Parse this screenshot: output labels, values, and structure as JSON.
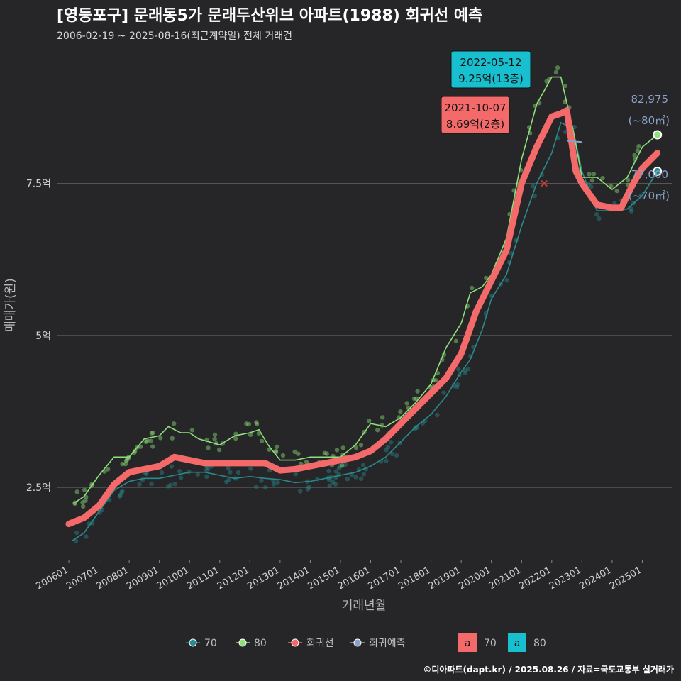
{
  "header": {
    "title": "[영등포구] 문래동5가 문래두산위브 아파트(1988) 회귀선 예측",
    "subtitle": "2006-02-19 ~ 2025-08-16(최근계약일) 전체 거래건"
  },
  "footer": {
    "credit": "©디아파트(dapt.kr) / 2025.08.26 / 자료=국토교통부 실거래가"
  },
  "colors": {
    "background": "#262628",
    "grid": "#555555",
    "s70": "#2a8a8c",
    "s80": "#8ee07a",
    "trend": "#f46a6a",
    "forecast": "#8aa2c8",
    "label70": "#f46a6a",
    "label80": "#17bfcf"
  },
  "chart_data": {
    "type": "line",
    "xlabel": "거래년월",
    "ylabel": "매매가(원)",
    "x_ticks": [
      "200601",
      "200701",
      "200801",
      "200901",
      "201001",
      "201101",
      "201201",
      "201301",
      "201401",
      "201501",
      "201601",
      "201701",
      "201801",
      "201901",
      "202001",
      "202101",
      "202201",
      "202301",
      "202401",
      "202501"
    ],
    "y_ticks": [
      {
        "value": 25000,
        "label": "2.5억"
      },
      {
        "value": 50000,
        "label": "5억"
      },
      {
        "value": 75000,
        "label": "7.5억"
      }
    ],
    "ylim": [
      13000,
      97000
    ],
    "xlim": [
      2005.6,
      2026.0
    ],
    "series": [
      {
        "name": "70",
        "points": [
          [
            2006.1,
            16200
          ],
          [
            2006.5,
            17500
          ],
          [
            2007.0,
            21000
          ],
          [
            2007.5,
            24500
          ],
          [
            2008.0,
            26000
          ],
          [
            2008.5,
            26500
          ],
          [
            2009.0,
            26500
          ],
          [
            2009.5,
            27000
          ],
          [
            2010.0,
            27500
          ],
          [
            2010.5,
            27500
          ],
          [
            2011.0,
            27000
          ],
          [
            2011.5,
            26500
          ],
          [
            2012.0,
            26800
          ],
          [
            2012.5,
            26500
          ],
          [
            2013.0,
            26300
          ],
          [
            2013.5,
            25800
          ],
          [
            2014.0,
            26000
          ],
          [
            2014.5,
            26500
          ],
          [
            2015.0,
            27000
          ],
          [
            2015.5,
            27500
          ],
          [
            2016.0,
            28500
          ],
          [
            2016.5,
            30000
          ],
          [
            2017.0,
            32500
          ],
          [
            2017.5,
            35000
          ],
          [
            2018.0,
            37000
          ],
          [
            2018.5,
            40000
          ],
          [
            2019.0,
            44000
          ],
          [
            2019.3,
            46000
          ],
          [
            2019.7,
            51000
          ],
          [
            2020.0,
            56000
          ],
          [
            2020.5,
            60000
          ],
          [
            2021.0,
            68000
          ],
          [
            2021.5,
            75000
          ],
          [
            2022.0,
            80000
          ],
          [
            2022.3,
            85000
          ],
          [
            2022.7,
            84000
          ],
          [
            2023.0,
            77000
          ],
          [
            2023.5,
            70500
          ],
          [
            2024.0,
            70500
          ],
          [
            2024.5,
            70800
          ],
          [
            2025.0,
            73000
          ],
          [
            2025.5,
            77000
          ]
        ]
      },
      {
        "name": "80",
        "points": [
          [
            2006.2,
            22500
          ],
          [
            2006.5,
            23500
          ],
          [
            2007.0,
            27000
          ],
          [
            2007.5,
            30000
          ],
          [
            2008.0,
            30000
          ],
          [
            2008.5,
            33000
          ],
          [
            2009.0,
            33500
          ],
          [
            2009.3,
            35000
          ],
          [
            2009.7,
            34000
          ],
          [
            2010.0,
            34000
          ],
          [
            2010.3,
            33000
          ],
          [
            2011.0,
            32000
          ],
          [
            2011.5,
            33500
          ],
          [
            2012.0,
            34000
          ],
          [
            2012.3,
            34500
          ],
          [
            2012.6,
            32000
          ],
          [
            2013.0,
            29500
          ],
          [
            2013.5,
            29500
          ],
          [
            2014.0,
            30000
          ],
          [
            2014.5,
            30000
          ],
          [
            2015.0,
            30000
          ],
          [
            2015.5,
            32000
          ],
          [
            2016.0,
            35500
          ],
          [
            2016.5,
            35000
          ],
          [
            2017.0,
            36500
          ],
          [
            2017.5,
            39000
          ],
          [
            2018.0,
            42000
          ],
          [
            2018.5,
            48000
          ],
          [
            2019.0,
            52000
          ],
          [
            2019.3,
            57000
          ],
          [
            2019.7,
            58000
          ],
          [
            2020.0,
            60000
          ],
          [
            2020.5,
            66000
          ],
          [
            2021.0,
            79000
          ],
          [
            2021.5,
            88000
          ],
          [
            2022.0,
            92500
          ],
          [
            2022.3,
            92500
          ],
          [
            2022.7,
            84000
          ],
          [
            2023.0,
            76000
          ],
          [
            2023.5,
            76000
          ],
          [
            2024.0,
            74000
          ],
          [
            2024.5,
            76000
          ],
          [
            2025.0,
            81000
          ],
          [
            2025.5,
            83000
          ]
        ]
      },
      {
        "name": "회귀선",
        "points": [
          [
            2006.0,
            19000
          ],
          [
            2006.5,
            20000
          ],
          [
            2007.0,
            22000
          ],
          [
            2007.5,
            25500
          ],
          [
            2008.0,
            27500
          ],
          [
            2008.5,
            28000
          ],
          [
            2009.0,
            28500
          ],
          [
            2009.5,
            30000
          ],
          [
            2010.0,
            29500
          ],
          [
            2010.5,
            29000
          ],
          [
            2011.0,
            29000
          ],
          [
            2011.5,
            29000
          ],
          [
            2012.0,
            29000
          ],
          [
            2012.5,
            29000
          ],
          [
            2013.0,
            27800
          ],
          [
            2013.5,
            28000
          ],
          [
            2014.0,
            28500
          ],
          [
            2014.5,
            29000
          ],
          [
            2015.0,
            29500
          ],
          [
            2015.5,
            30000
          ],
          [
            2016.0,
            31000
          ],
          [
            2016.5,
            33000
          ],
          [
            2017.0,
            35500
          ],
          [
            2017.5,
            38000
          ],
          [
            2018.0,
            40500
          ],
          [
            2018.5,
            43000
          ],
          [
            2019.0,
            47000
          ],
          [
            2019.5,
            54000
          ],
          [
            2020.0,
            59000
          ],
          [
            2020.5,
            64000
          ],
          [
            2021.0,
            75000
          ],
          [
            2021.5,
            81000
          ],
          [
            2021.8,
            84000
          ],
          [
            2022.0,
            86000
          ],
          [
            2022.3,
            86500
          ],
          [
            2022.5,
            87000
          ],
          [
            2022.8,
            77000
          ],
          [
            2023.0,
            75000
          ],
          [
            2023.5,
            71500
          ],
          [
            2024.0,
            71000
          ],
          [
            2024.3,
            71000
          ],
          [
            2024.7,
            75000
          ],
          [
            2025.0,
            77500
          ],
          [
            2025.5,
            80000
          ]
        ]
      },
      {
        "name": "회귀예측",
        "points": [
          [
            2022.5,
            82000
          ],
          [
            2023.0,
            81800
          ]
        ]
      }
    ],
    "annotations": [
      {
        "date": "2022-05-12",
        "text": "9.25억(13층)",
        "series": "80"
      },
      {
        "date": "2021-10-07",
        "text": "8.69억(2층)",
        "series": "70"
      }
    ],
    "end_labels": [
      {
        "value": "82,975",
        "area": "(~80㎡)"
      },
      {
        "value": "77,000",
        "area": "(~70㎡)"
      }
    ],
    "legend": {
      "items": [
        "70",
        "80",
        "회귀선",
        "회귀예측"
      ],
      "label_items": [
        {
          "glyph": "a",
          "name": "70"
        },
        {
          "glyph": "a",
          "name": "80"
        }
      ],
      "position": "bottom"
    }
  }
}
